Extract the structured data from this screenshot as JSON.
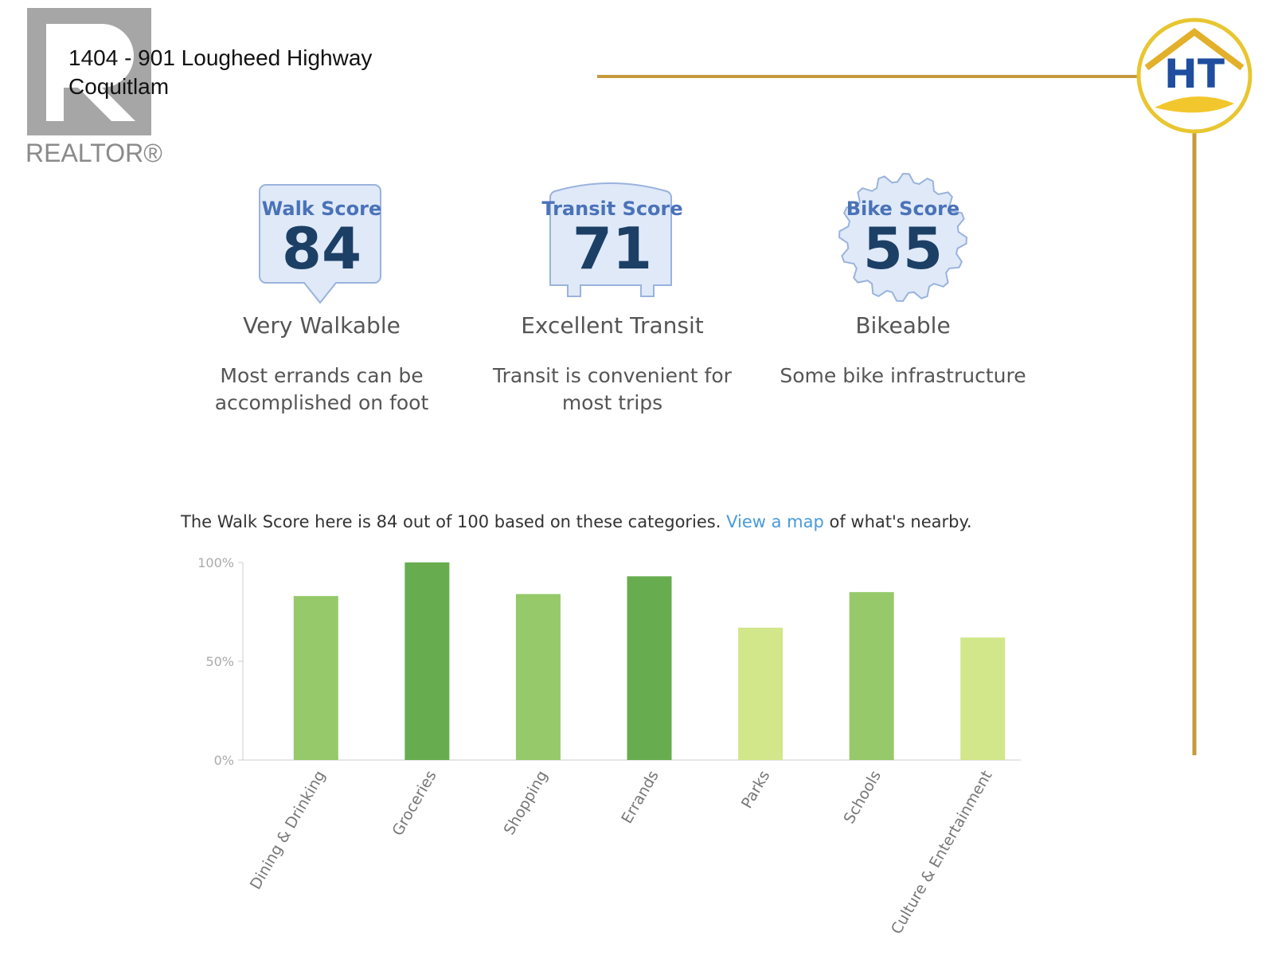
{
  "header": {
    "address_line1": "1404 - 901 Lougheed Highway",
    "address_line2": "Coquitlam",
    "realtor_logo": "REALTOR®",
    "agent_logo": "HT"
  },
  "scores": [
    {
      "label": "Walk Score",
      "score": "84",
      "rating": "Very Walkable",
      "description": "Most errands can be accomplished on foot"
    },
    {
      "label": "Transit Score",
      "score": "71",
      "rating": "Excellent Transit",
      "description": "Transit is convenient for most trips"
    },
    {
      "label": "Bike Score",
      "score": "55",
      "rating": "Bikeable",
      "description": "Some bike infrastructure"
    }
  ],
  "intro": {
    "before": "The Walk Score here is 84 out of 100 based on these categories.",
    "link": "View a map",
    "after": "of what's nearby."
  },
  "chart_data": {
    "type": "bar",
    "categories": [
      "Dining & Drinking",
      "Groceries",
      "Shopping",
      "Errands",
      "Parks",
      "Schools",
      "Culture & Entertainment"
    ],
    "values": [
      83,
      100,
      84,
      93,
      67,
      85,
      62
    ],
    "colors": [
      "#95c96a",
      "#67ad4f",
      "#95c96a",
      "#67ad4f",
      "#d2e68a",
      "#95c96a",
      "#d2e68a"
    ],
    "ylim": [
      0,
      100
    ],
    "yticks": [
      {
        "value": 0,
        "label": "0%"
      },
      {
        "value": 50,
        "label": "50%"
      },
      {
        "value": 100,
        "label": "100%"
      }
    ]
  }
}
